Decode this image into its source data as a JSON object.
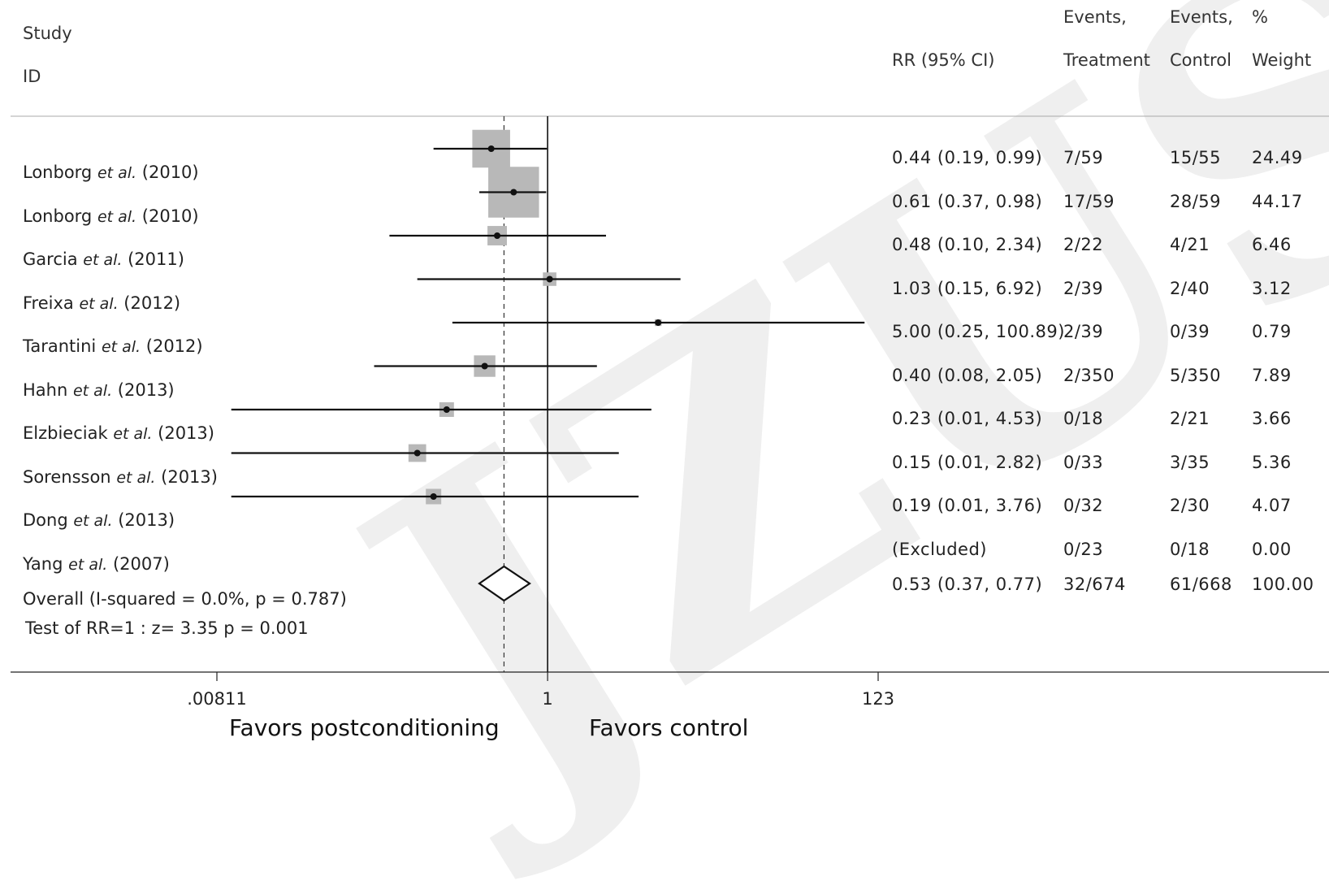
{
  "watermark": "JZUS-B",
  "header": {
    "study": "Study",
    "id": "ID",
    "rr": "RR (95% CI)",
    "events_treat_1": "Events,",
    "events_treat_2": "Treatment",
    "events_ctrl_1": "Events,",
    "events_ctrl_2": "Control",
    "weight_1": "%",
    "weight_2": "Weight"
  },
  "chart_data": {
    "type": "forest",
    "scale": "log",
    "xticks": [
      {
        "value": 0.00811,
        "label": ".00811"
      },
      {
        "value": 1,
        "label": "1"
      },
      {
        "value": 123,
        "label": "123"
      }
    ],
    "null_line": 1,
    "pooled_line": 0.53,
    "left_label": "Favors postconditioning",
    "right_label": "Favors control",
    "studies": [
      {
        "name": "Lonborg",
        "etal": "et al.",
        "year": "(2010)",
        "rr": 0.44,
        "lo": 0.19,
        "hi": 0.99,
        "ci_text": "0.44 (0.19, 0.99)",
        "treat": "7/59",
        "control": "15/55",
        "weight": "24.49",
        "w": 24.49
      },
      {
        "name": "Lonborg",
        "etal": "et al.",
        "year": "(2010)",
        "rr": 0.61,
        "lo": 0.37,
        "hi": 0.98,
        "ci_text": "0.61 (0.37, 0.98)",
        "treat": "17/59",
        "control": "28/59",
        "weight": "44.17",
        "w": 44.17
      },
      {
        "name": "Garcia",
        "etal": "et al.",
        "year": "(2011)",
        "rr": 0.48,
        "lo": 0.1,
        "hi": 2.34,
        "ci_text": "0.48 (0.10, 2.34)",
        "treat": "2/22",
        "control": "4/21",
        "weight": "6.46",
        "w": 6.46
      },
      {
        "name": "Freixa",
        "etal": "et al.",
        "year": "(2012)",
        "rr": 1.03,
        "lo": 0.15,
        "hi": 6.92,
        "ci_text": "1.03 (0.15, 6.92)",
        "treat": "2/39",
        "control": "2/40",
        "weight": "3.12",
        "w": 3.12
      },
      {
        "name": "Tarantini",
        "etal": "et al.",
        "year": "(2012)",
        "rr": 5.0,
        "lo": 0.25,
        "hi": 100.89,
        "ci_text": "5.00 (0.25, 100.89)",
        "treat": "2/39",
        "control": "0/39",
        "weight": "0.79",
        "w": 0.79
      },
      {
        "name": "Hahn",
        "etal": "et al.",
        "year": "(2013)",
        "rr": 0.4,
        "lo": 0.08,
        "hi": 2.05,
        "ci_text": "0.40 (0.08, 2.05)",
        "treat": "2/350",
        "control": "5/350",
        "weight": "7.89",
        "w": 7.89
      },
      {
        "name": "Elzbieciak",
        "etal": "et al.",
        "year": "(2013)",
        "rr": 0.23,
        "lo": 0.01,
        "hi": 4.53,
        "ci_text": "0.23 (0.01, 4.53)",
        "treat": "0/18",
        "control": "2/21",
        "weight": "3.66",
        "w": 3.66
      },
      {
        "name": "Sorensson",
        "etal": "et al.",
        "year": "(2013)",
        "rr": 0.15,
        "lo": 0.01,
        "hi": 2.82,
        "ci_text": "0.15 (0.01, 2.82)",
        "treat": "0/33",
        "control": "3/35",
        "weight": "5.36",
        "w": 5.36
      },
      {
        "name": "Dong",
        "etal": "et al.",
        "year": "(2013)",
        "rr": 0.19,
        "lo": 0.01,
        "hi": 3.76,
        "ci_text": "0.19 (0.01, 3.76)",
        "treat": "0/32",
        "control": "2/30",
        "weight": "4.07",
        "w": 4.07
      },
      {
        "name": "Yang",
        "etal": "et al.",
        "year": "(2007)",
        "rr": null,
        "lo": null,
        "hi": null,
        "ci_text": "(Excluded)",
        "treat": "0/23",
        "control": "0/18",
        "weight": "0.00",
        "w": 0
      }
    ],
    "overall": {
      "label": "Overall  (I-squared = 0.0%, p = 0.787)",
      "test": "Test of RR=1 : z=   3.35 p = 0.001",
      "rr": 0.53,
      "lo": 0.37,
      "hi": 0.77,
      "ci_text": "0.53 (0.37, 0.77)",
      "treat": "32/674",
      "control": "61/668",
      "weight": "100.00"
    }
  }
}
